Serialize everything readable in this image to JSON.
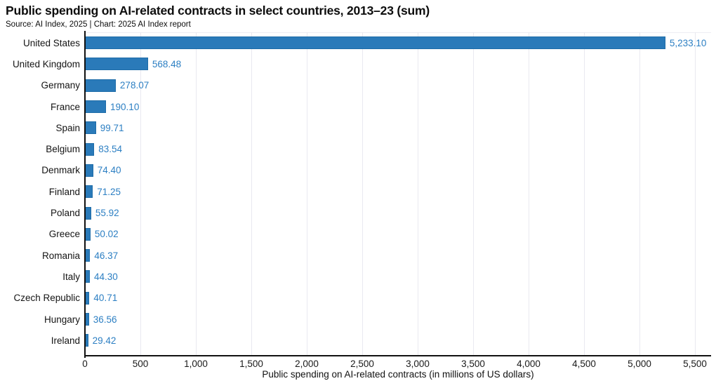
{
  "header": {
    "title": "Public spending on AI-related contracts in select countries, 2013–23 (sum)",
    "source": "Source: AI Index, 2025 | Chart: 2025 AI Index report"
  },
  "chart_data": {
    "type": "bar",
    "orientation": "horizontal",
    "title": "Public spending on AI-related contracts in select countries, 2013–23 (sum)",
    "xlabel": "Public spending on AI-related contracts (in millions of US dollars)",
    "ylabel": "",
    "xlim": [
      0,
      5500
    ],
    "x_ticks": [
      0,
      500,
      1000,
      1500,
      2000,
      2500,
      3000,
      3500,
      4000,
      4500,
      5000,
      5500
    ],
    "x_tick_labels": [
      "0",
      "500",
      "1,000",
      "1,500",
      "2,000",
      "2,500",
      "3,000",
      "3,500",
      "4,000",
      "4,500",
      "5,000",
      "5,500"
    ],
    "grid": "vertical-light",
    "legend": "none",
    "categories": [
      "United States",
      "United Kingdom",
      "Germany",
      "France",
      "Spain",
      "Belgium",
      "Denmark",
      "Finland",
      "Poland",
      "Greece",
      "Romania",
      "Italy",
      "Czech Republic",
      "Hungary",
      "Ireland"
    ],
    "values": [
      5233.1,
      568.48,
      278.07,
      190.1,
      99.71,
      83.54,
      74.4,
      71.25,
      55.92,
      50.02,
      46.37,
      44.3,
      40.71,
      36.56,
      29.42
    ],
    "value_labels": [
      "5,233.10",
      "568.48",
      "278.07",
      "190.10",
      "99.71",
      "83.54",
      "74.40",
      "71.25",
      "55.92",
      "50.02",
      "46.37",
      "44.30",
      "40.71",
      "36.56",
      "29.42"
    ],
    "colors": {
      "bar_fill": "#2a7ab9",
      "bar_border": "#1e6ca8",
      "value_label": "#2c7fc3",
      "axis": "#111111",
      "gridline": "#e9e9f0",
      "text": "#141414"
    }
  }
}
